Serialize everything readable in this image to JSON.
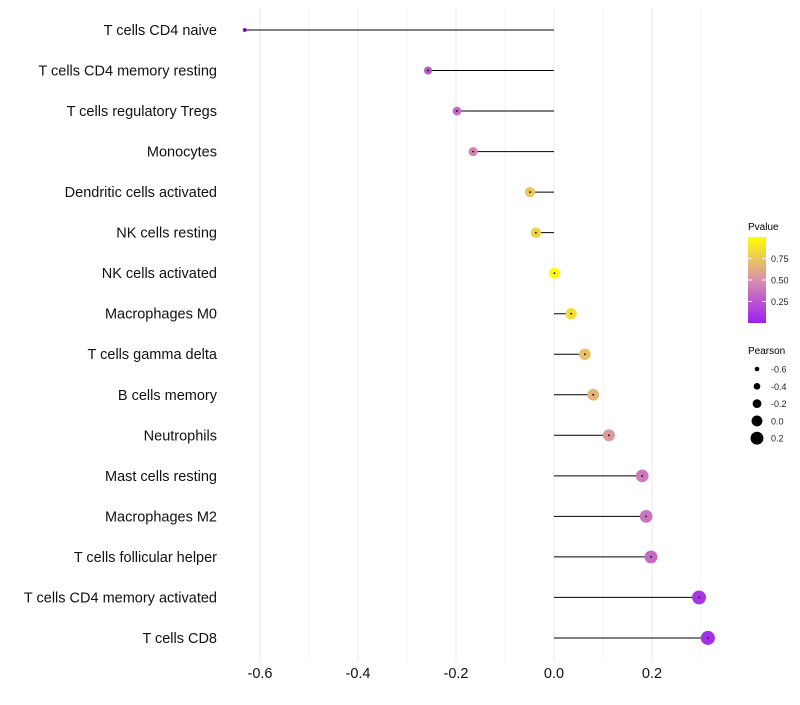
{
  "chart_data": {
    "type": "lollipop",
    "title": "",
    "xlabel": "",
    "ylabel": "",
    "xlim": [
      -0.66,
      0.34
    ],
    "x_ticks": [
      -0.6,
      -0.4,
      -0.2,
      0.0,
      0.2
    ],
    "x_tick_labels": [
      "-0.6",
      "-0.4",
      "-0.2",
      "0.0",
      "0.2"
    ],
    "grid": true,
    "categories": [
      "T cells CD4 naive",
      "T cells CD4 memory resting",
      "T cells regulatory  Tregs",
      "Monocytes",
      "Dendritic cells activated",
      "NK cells resting",
      "NK cells activated",
      "Macrophages M0",
      "T cells gamma delta",
      "B cells memory",
      "Neutrophils",
      "Mast cells resting",
      "Macrophages M2",
      "T cells follicular helper",
      "T cells CD4 memory activated",
      "T cells CD8"
    ],
    "pearson": [
      -0.631,
      -0.257,
      -0.198,
      -0.165,
      -0.049,
      -0.037,
      0.001,
      0.035,
      0.063,
      0.08,
      0.112,
      0.18,
      0.188,
      0.198,
      0.296,
      0.314
    ],
    "pvalue": [
      0.01,
      0.25,
      0.33,
      0.45,
      0.75,
      0.8,
      0.99,
      0.85,
      0.72,
      0.66,
      0.55,
      0.4,
      0.38,
      0.33,
      0.1,
      0.08
    ],
    "legend_color": {
      "title": "Pvalue",
      "ticks": [
        0.25,
        0.5,
        0.75
      ],
      "tick_labels": [
        "0.25",
        "0.50",
        "0.75"
      ],
      "range": [
        0,
        1
      ],
      "colors": [
        "#9b1ff1",
        "#d98fae",
        "#ffff00"
      ],
      "placement": "right"
    },
    "legend_size": {
      "title": "Pearson",
      "values": [
        -0.6,
        -0.4,
        -0.2,
        0.0,
        0.2
      ],
      "labels": [
        "-0.6",
        "-0.4",
        "-0.2",
        "0.0",
        "0.2"
      ],
      "placement": "right"
    }
  }
}
